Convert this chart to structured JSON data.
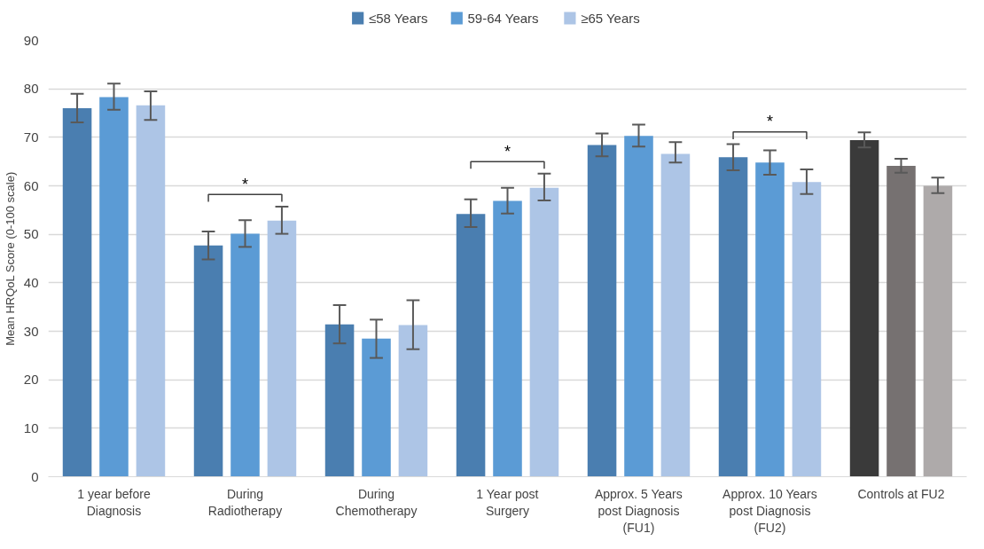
{
  "chart_data": {
    "type": "bar",
    "ylabel": "Mean HRQoL Score (0-100 scale)",
    "categories": [
      "1 year before Diagnosis",
      "During Radiotherapy",
      "During Chemotherapy",
      "1 Year post Surgery",
      "Approx. 5 Years post Diagnosis (FU1)",
      "Approx. 10 Years post Diagnosis (FU2)",
      "Controls at FU2"
    ],
    "series": [
      {
        "name": "≤58 Years",
        "color": "#4a7eb0",
        "colors": [
          "#4a7eb0",
          "#4a7eb0",
          "#4a7eb0",
          "#4a7eb0",
          "#4a7eb0",
          "#4a7eb0",
          "#3a3a3a"
        ],
        "values": [
          76.0,
          47.7,
          31.4,
          54.2,
          68.4,
          65.9,
          69.4
        ],
        "errors": [
          [
            73.1,
            79.0
          ],
          [
            44.8,
            50.6
          ],
          [
            27.5,
            35.4
          ],
          [
            51.5,
            57.2
          ],
          [
            66.1,
            70.8
          ],
          [
            63.2,
            68.6
          ],
          [
            67.9,
            71.0
          ]
        ]
      },
      {
        "name": "59-64 Years",
        "color": "#5b9bd5",
        "colors": [
          "#5b9bd5",
          "#5b9bd5",
          "#5b9bd5",
          "#5b9bd5",
          "#5b9bd5",
          "#5b9bd5",
          "#767171"
        ],
        "values": [
          78.3,
          50.1,
          28.5,
          56.9,
          70.3,
          64.8,
          64.1
        ],
        "errors": [
          [
            75.7,
            81.1
          ],
          [
            47.4,
            52.9
          ],
          [
            24.5,
            32.4
          ],
          [
            54.3,
            59.6
          ],
          [
            68.1,
            72.6
          ],
          [
            62.3,
            67.3
          ],
          [
            62.7,
            65.6
          ]
        ]
      },
      {
        "name": "≥65 Years",
        "color": "#adc5e6",
        "colors": [
          "#adc5e6",
          "#adc5e6",
          "#adc5e6",
          "#adc5e6",
          "#adc5e6",
          "#adc5e6",
          "#aeaaaa"
        ],
        "values": [
          76.6,
          52.8,
          31.3,
          59.6,
          66.6,
          60.8,
          60.0
        ],
        "errors": [
          [
            73.6,
            79.5
          ],
          [
            50.1,
            55.7
          ],
          [
            26.3,
            36.4
          ],
          [
            57.0,
            62.5
          ],
          [
            64.8,
            69.0
          ],
          [
            58.3,
            63.4
          ],
          [
            58.5,
            61.7
          ]
        ]
      }
    ],
    "ylim": [
      0,
      90
    ],
    "yticks": [
      0,
      10,
      20,
      30,
      40,
      50,
      60,
      70,
      80,
      90
    ],
    "grid": "y",
    "legend": "top",
    "annotations": [
      {
        "text": "*",
        "x": "During Radiotherapy",
        "y": 52.8
      },
      {
        "text": "*",
        "x": "1 Year post Surgery",
        "y": 59.6
      },
      {
        "text": "*",
        "x": "Approx. 10 Years post Diagnosis (FU2)",
        "y": 65.9
      }
    ]
  }
}
